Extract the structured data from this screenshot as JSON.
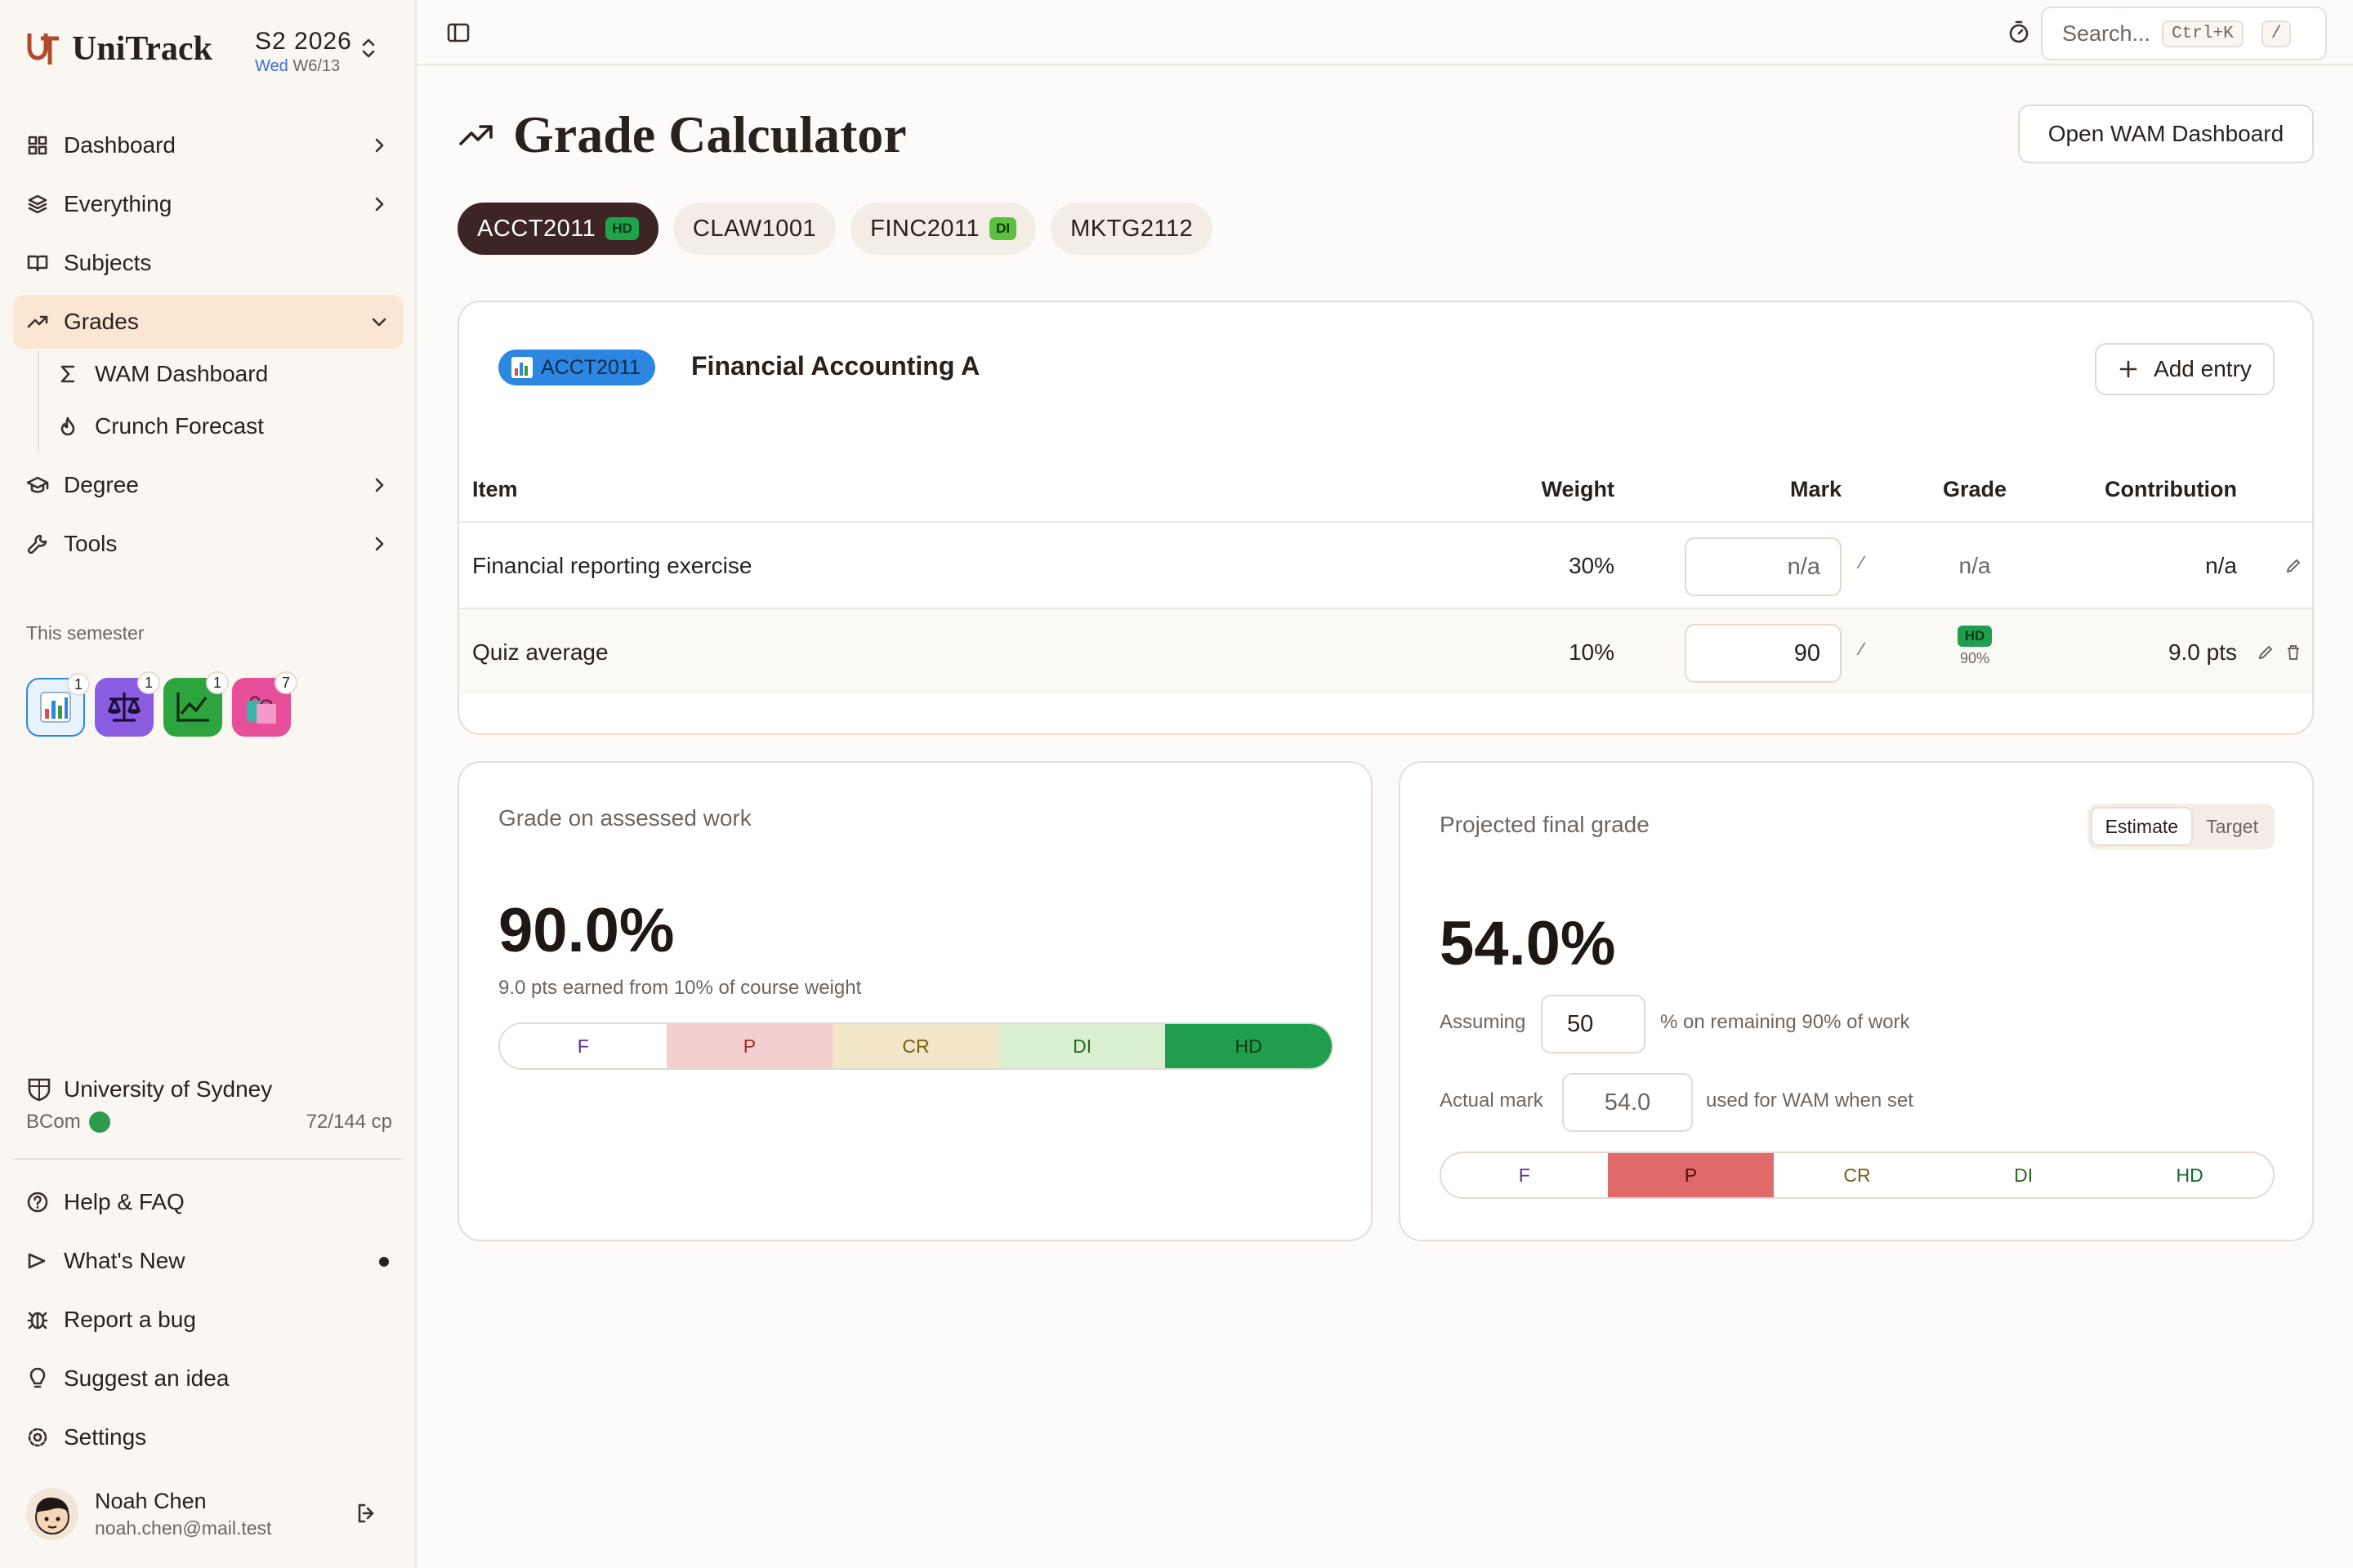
{
  "app": {
    "name": "UniTrack"
  },
  "semester": {
    "name": "S2 2026",
    "weekday": "Wed",
    "week": "W6/13"
  },
  "nav": {
    "dashboard": "Dashboard",
    "everything": "Everything",
    "subjects": "Subjects",
    "grades": "Grades",
    "wam_dashboard": "WAM Dashboard",
    "crunch_forecast": "Crunch Forecast",
    "degree": "Degree",
    "tools": "Tools"
  },
  "this_semester": {
    "label": "This semester",
    "subjects": [
      {
        "icon": "bar-chart-icon",
        "count": "1"
      },
      {
        "icon": "scales-icon",
        "count": "1"
      },
      {
        "icon": "line-chart-icon",
        "count": "1"
      },
      {
        "icon": "shopping-bags-icon",
        "count": "7"
      }
    ]
  },
  "university": {
    "name": "University of Sydney",
    "degree": "BCom",
    "credit": "72/144 cp"
  },
  "footer_nav": {
    "help": "Help & FAQ",
    "whats_new": "What's New",
    "report_bug": "Report a bug",
    "suggest": "Suggest an idea",
    "settings": "Settings"
  },
  "user": {
    "name": "Noah Chen",
    "email": "noah.chen@mail.test"
  },
  "topbar": {
    "search_placeholder": "Search...",
    "shortcut": "Ctrl+K",
    "slash": "/"
  },
  "page": {
    "title": "Grade Calculator",
    "open_wam_button": "Open WAM Dashboard"
  },
  "course_tabs": [
    {
      "code": "ACCT2011",
      "badge": "HD",
      "active": true
    },
    {
      "code": "CLAW1001",
      "badge": "",
      "active": false
    },
    {
      "code": "FINC2011",
      "badge": "DI",
      "active": false
    },
    {
      "code": "MKTG2112",
      "badge": "",
      "active": false
    }
  ],
  "course": {
    "code": "ACCT2011",
    "name": "Financial Accounting A",
    "add_entry": "Add entry",
    "columns": {
      "item": "Item",
      "weight": "Weight",
      "mark": "Mark",
      "grade": "Grade",
      "contribution": "Contribution"
    },
    "rows": [
      {
        "item": "Financial reporting exercise",
        "weight": "30%",
        "mark": "n/a",
        "frac": "⁄",
        "grade": "n/a",
        "grade_pct": "",
        "contribution": "n/a"
      },
      {
        "item": "Quiz average",
        "weight": "10%",
        "mark": "90",
        "frac": "⁄",
        "grade": "HD",
        "grade_pct": "90%",
        "contribution": "9.0 pts"
      }
    ]
  },
  "assessed": {
    "label": "Grade on assessed work",
    "value": "90.0%",
    "sub": "9.0 pts earned from 10% of course weight",
    "bands": [
      "F",
      "P",
      "CR",
      "DI",
      "HD"
    ],
    "active_band": "HD"
  },
  "projected": {
    "label": "Projected final grade",
    "toggle": [
      "Estimate",
      "Target"
    ],
    "active_toggle": "Estimate",
    "value": "54.0%",
    "assuming_label": "Assuming",
    "assuming_value": "50",
    "assuming_suffix": "% on remaining 90% of work",
    "actual_label": "Actual mark",
    "actual_placeholder": "54.0",
    "actual_suffix": "used for WAM when set",
    "bands": [
      "F",
      "P",
      "CR",
      "DI",
      "HD"
    ],
    "active_band": "P"
  },
  "colors": {
    "accent": "#3c2522",
    "hd": "#1f9e4e",
    "p_active": "#e06a6a",
    "active_nav": "#fbe5d3"
  }
}
